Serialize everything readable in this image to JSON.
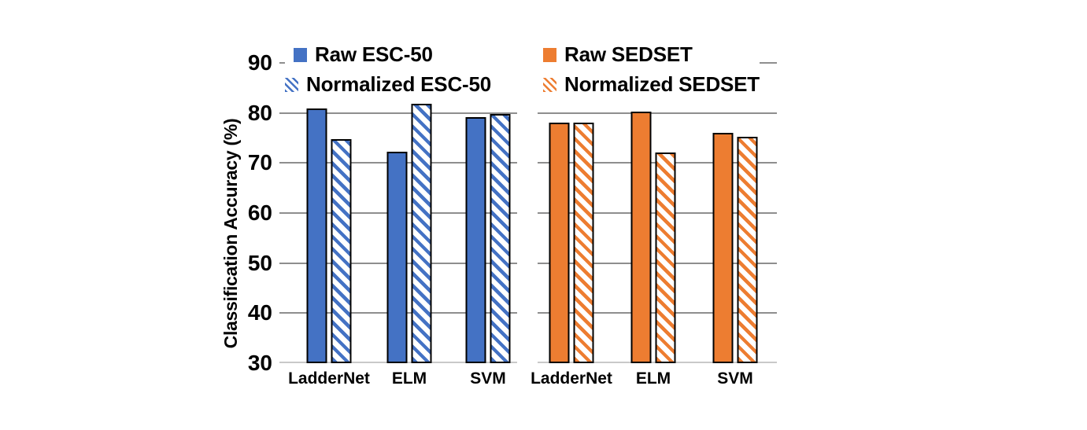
{
  "chart_data": {
    "type": "bar",
    "title": "",
    "xlabel": "",
    "ylabel": "Classification Accuracy (%)",
    "ylim": [
      30,
      90
    ],
    "yticks": [
      30,
      40,
      50,
      60,
      70,
      80,
      90
    ],
    "grid": "horizontal",
    "legend_position": "top",
    "categories": [
      "LadderNet",
      "ELM",
      "SVM"
    ],
    "panels": [
      {
        "dataset": "ESC-50",
        "color": "#4472C4",
        "series": [
          {
            "name": "Raw ESC-50",
            "pattern": "solid",
            "values": [
              80.9,
              72.2,
              79.1
            ]
          },
          {
            "name": "Normalized ESC-50",
            "pattern": "hatched",
            "values": [
              74.8,
              81.9,
              79.8
            ]
          }
        ]
      },
      {
        "dataset": "SEDSET",
        "color": "#ED7D31",
        "series": [
          {
            "name": "Raw SEDSET",
            "pattern": "solid",
            "values": [
              78.1,
              80.2,
              76.1
            ]
          },
          {
            "name": "Normalized SEDSET",
            "pattern": "hatched",
            "values": [
              78.1,
              72.1,
              75.2
            ]
          }
        ]
      }
    ]
  },
  "colors": {
    "bar_border": "#000000",
    "gridline": "#8E8E8E",
    "axis_line": "#C9C9C9",
    "text": "#000000",
    "background": "#FFFFFF"
  }
}
